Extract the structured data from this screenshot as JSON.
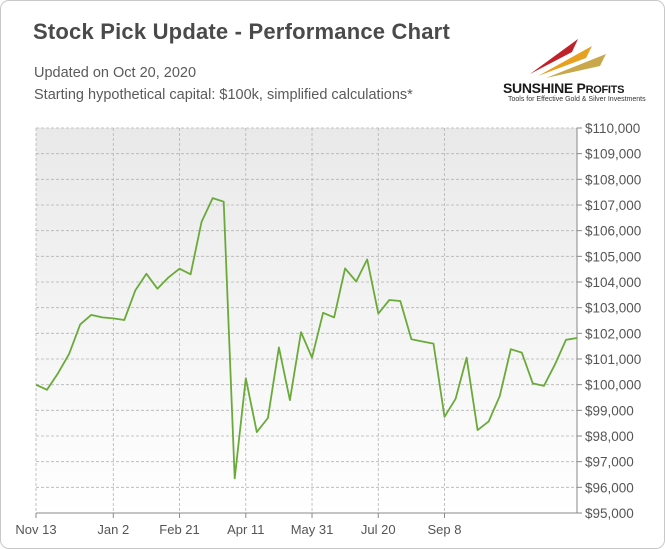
{
  "header": {
    "title": "Stock Pick Update - Performance Chart",
    "updated": "Updated on Oct 20, 2020",
    "note": "Starting hypothetical capital: $100k, simplified calculations*"
  },
  "logo": {
    "name_big": "SUNSHINE P",
    "name_small": "ROFITS",
    "tagline": "Tools for Effective Gold & Silver Investments",
    "colors": [
      "#c0222a",
      "#e8a020",
      "#c9a84c"
    ]
  },
  "chart_data": {
    "type": "line",
    "title": "",
    "xlabel": "",
    "ylabel": "",
    "ylim": [
      95000,
      110000
    ],
    "y_ticks": [
      95000,
      96000,
      97000,
      98000,
      99000,
      100000,
      101000,
      102000,
      103000,
      104000,
      105000,
      106000,
      107000,
      108000,
      109000,
      110000
    ],
    "y_tick_labels": [
      "$95,000",
      "$96,000",
      "$97,000",
      "$98,000",
      "$99,000",
      "$100,000",
      "$101,000",
      "$102,000",
      "$103,000",
      "$104,000",
      "$105,000",
      "$106,000",
      "$107,000",
      "$108,000",
      "$109,000",
      "$110,000"
    ],
    "x_tick_labels": [
      "Nov 13",
      "Jan 2",
      "Feb 21",
      "Apr 11",
      "May 31",
      "Jul 20",
      "Sep 8"
    ],
    "x_tick_index": [
      0,
      7,
      13,
      19,
      25,
      31,
      37
    ],
    "grid": true,
    "axis_position": "right",
    "line_color": "#6aaa3a",
    "series": [
      {
        "values": [
          100000,
          99800,
          100450,
          101200,
          102350,
          102720,
          102620,
          102580,
          102520,
          103680,
          104320,
          103740,
          104180,
          104520,
          104300,
          106350,
          107270,
          107130,
          96350,
          100250,
          98150,
          98700,
          101450,
          99400,
          102050,
          101050,
          102800,
          102620,
          104530,
          104020,
          104880,
          102770,
          103300,
          103260,
          101770,
          101680,
          101600,
          98750,
          99450,
          101050,
          98230,
          98570,
          99550,
          101380,
          101250,
          100050,
          99950,
          100780,
          101750,
          101820
        ]
      }
    ]
  }
}
